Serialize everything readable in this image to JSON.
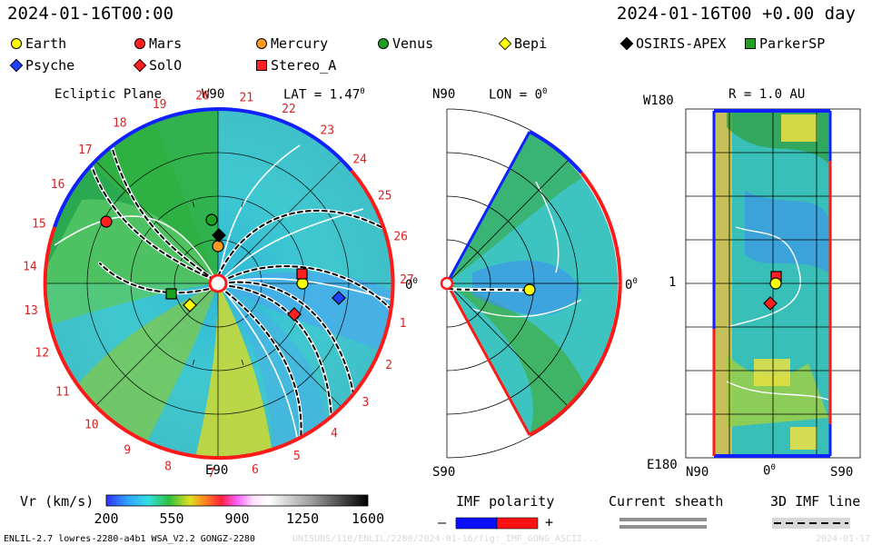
{
  "header": {
    "date_left": "2024-01-16T00:00",
    "date_right": "2024-01-16T00 +0.00 day"
  },
  "legend": [
    {
      "label": "Earth",
      "shape": "circle",
      "color": "#ffff00"
    },
    {
      "label": "Mars",
      "shape": "circle",
      "color": "#ff2020"
    },
    {
      "label": "Mercury",
      "shape": "circle",
      "color": "#ff9a20"
    },
    {
      "label": "Venus",
      "shape": "circle",
      "color": "#20a020"
    },
    {
      "label": "Bepi",
      "shape": "diamond",
      "color": "#ffff00"
    },
    {
      "label": "OSIRIS-APEX",
      "shape": "diamond",
      "color": "#000000"
    },
    {
      "label": "ParkerSP",
      "shape": "square",
      "color": "#20a020"
    },
    {
      "label": "Psyche",
      "shape": "diamond",
      "color": "#2040ff"
    },
    {
      "label": "SolO",
      "shape": "diamond",
      "color": "#ff2020"
    },
    {
      "label": "Stereo_A",
      "shape": "square",
      "color": "#ff2020"
    }
  ],
  "panel_ecliptic": {
    "title": "Ecliptic Plane",
    "top_label": "W90",
    "bottom_label": "E90",
    "right_label": "0",
    "right_label_sup": "0",
    "lat_text": "LAT = 1.47",
    "lat_sup": "0",
    "carrington": [
      "1",
      "2",
      "3",
      "4",
      "5",
      "6",
      "7",
      "8",
      "9",
      "10",
      "11",
      "12",
      "13",
      "14",
      "15",
      "16",
      "17",
      "18",
      "19",
      "20",
      "21",
      "22",
      "23",
      "24",
      "25",
      "26",
      "27"
    ]
  },
  "panel_meridional": {
    "top_label": "N90",
    "bottom_label": "S90",
    "lon_text": "LON = 0",
    "lon_sup": "0",
    "right_label": "0",
    "right_label_sup": "0"
  },
  "panel_radial": {
    "title": "R = 1.0 AU",
    "top_left": "W180",
    "bottom_left": "E180",
    "mid_left": "1",
    "x_left": "N90",
    "x_mid": "0",
    "x_mid_sup": "0",
    "x_right": "S90"
  },
  "colorbar": {
    "label": "Vr (km/s)",
    "ticks": [
      "200",
      "550",
      "900",
      "1250",
      "1600"
    ]
  },
  "imf": {
    "label": "IMF polarity",
    "minus": "–",
    "plus": "+",
    "minus_color": "#0a10ff",
    "plus_color": "#ff1010"
  },
  "current_sheath": {
    "label": "Current sheath"
  },
  "imf_line": {
    "label": "3D IMF line"
  },
  "footer": {
    "model": "ENLIL-2.7 lowres-2280-a4b1 WSA_V2.2 GONGZ-2280",
    "run": "UNISUBS/110/ENLIL/2280/2024-01-16/fig:_IMF_GONG_ASCII...",
    "stamp": "2024-01-17"
  }
}
